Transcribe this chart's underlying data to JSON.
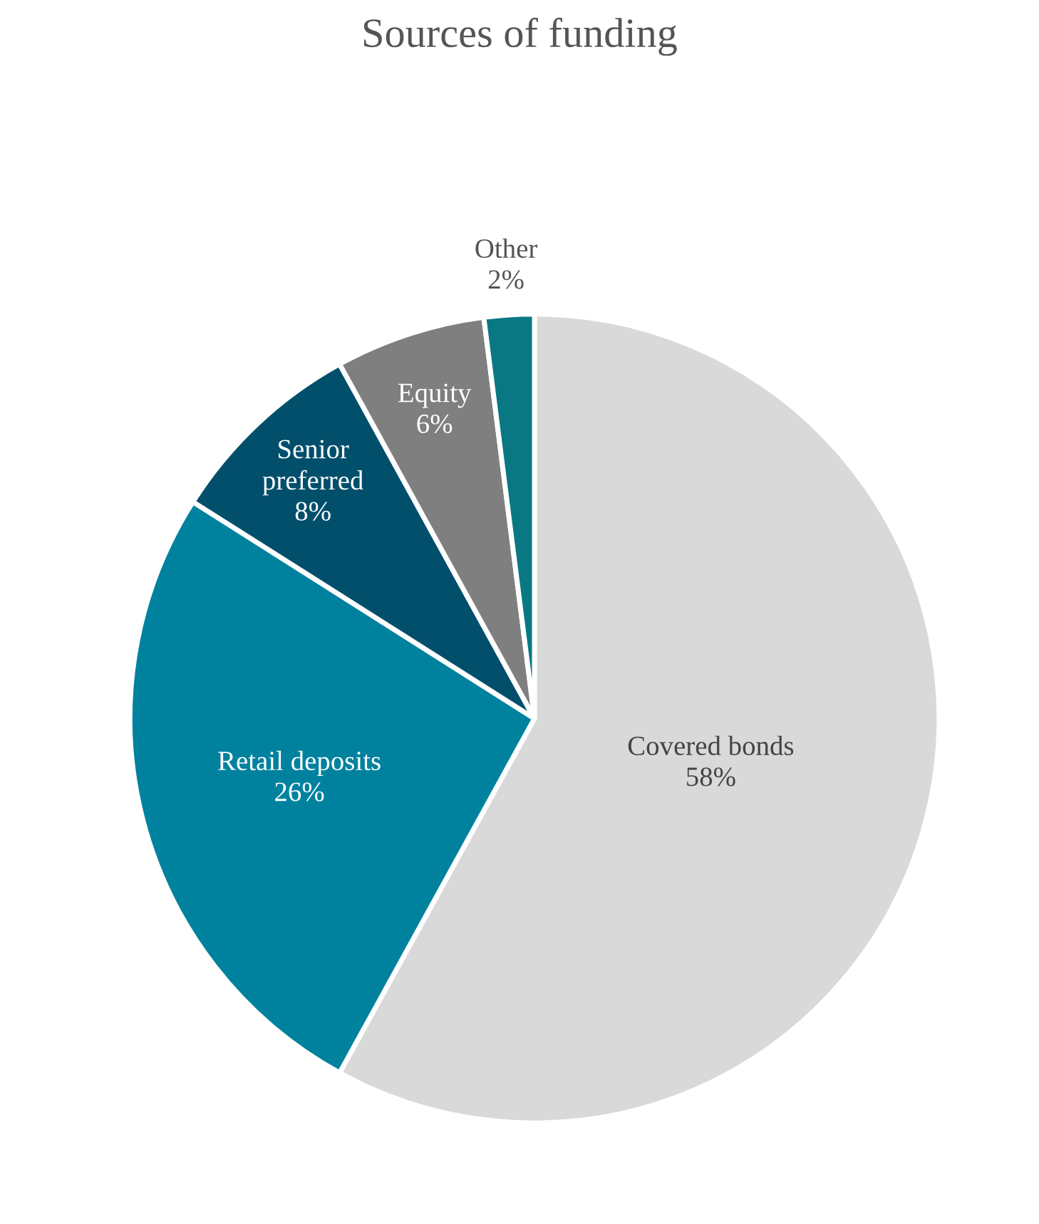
{
  "chart_data": {
    "type": "pie",
    "title": "Sources of funding",
    "categories": [
      "Covered bonds",
      "Retail deposits",
      "Senior preferred",
      "Equity",
      "Other"
    ],
    "values": [
      58,
      26,
      8,
      6,
      2
    ],
    "value_labels": [
      "58%",
      "26%",
      "8%",
      "6%",
      "2%"
    ],
    "colors": [
      "#d9d9d9",
      "#00829f",
      "#024f6c",
      "#7f7f7f",
      "#0a7882"
    ]
  }
}
